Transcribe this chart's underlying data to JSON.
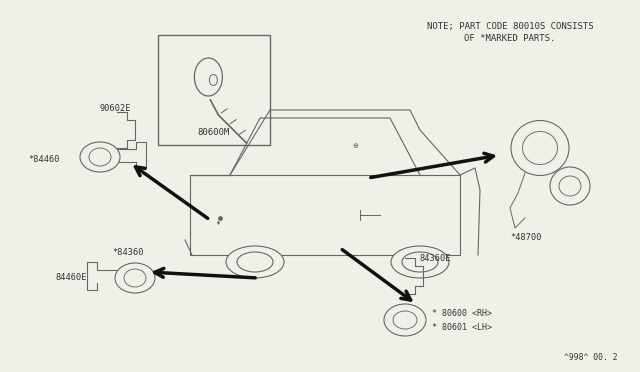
{
  "bg_color": "#f0f0e8",
  "line_color": "#666666",
  "text_color": "#333333",
  "note_line1": "NOTE; PART CODE 80010S CONSISTS",
  "note_line2": "OF *MARKED PARTS.",
  "diagram_id": "^998^ 00. 2",
  "arrow_color": "#111111"
}
